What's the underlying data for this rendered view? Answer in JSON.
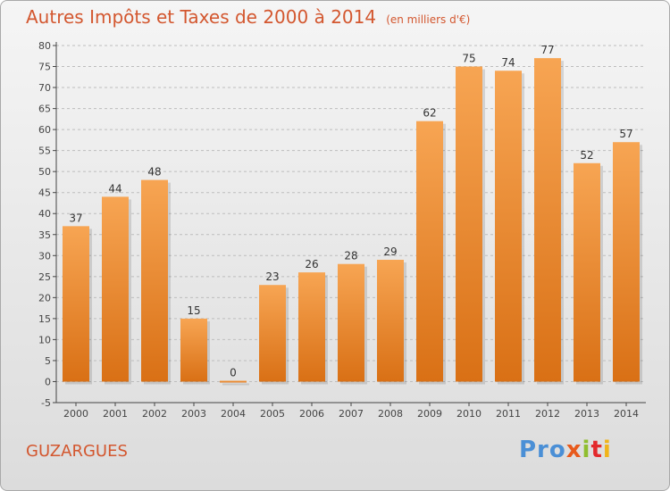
{
  "header": {
    "title": "Autres Impôts et Taxes de 2000 à 2014",
    "unit": "(en milliers d'€)"
  },
  "footer": {
    "commune": "GUZARGUES",
    "logo": [
      "Pro",
      "x",
      "i",
      "t",
      "i"
    ]
  },
  "colors": {
    "bar_top": "#f7a553",
    "bar_bottom": "#d97015",
    "title": "#d3572f",
    "axis": "#444444",
    "grid": "#bdbdbd"
  },
  "chart_data": {
    "type": "bar",
    "title": "Autres Impôts et Taxes de 2000 à 2014",
    "subtitle": "(en milliers d'€)",
    "xlabel": "",
    "ylabel": "",
    "categories": [
      "2000",
      "2001",
      "2002",
      "2003",
      "2004",
      "2005",
      "2006",
      "2007",
      "2008",
      "2009",
      "2010",
      "2011",
      "2012",
      "2013",
      "2014"
    ],
    "values": [
      37,
      44,
      48,
      15,
      0,
      23,
      26,
      28,
      29,
      62,
      75,
      74,
      77,
      52,
      57
    ],
    "value_labels": [
      "37",
      "44",
      "48",
      "15",
      "0",
      "23",
      "26",
      "28",
      "29",
      "62",
      "75",
      "74",
      "77",
      "52",
      "57"
    ],
    "ylim": [
      -5,
      80
    ],
    "yticks": [
      "-5",
      "0",
      "5",
      "10",
      "15",
      "20",
      "25",
      "30",
      "35",
      "40",
      "45",
      "50",
      "55",
      "60",
      "65",
      "70",
      "75",
      "80"
    ],
    "grid": "horizontal dashed"
  }
}
